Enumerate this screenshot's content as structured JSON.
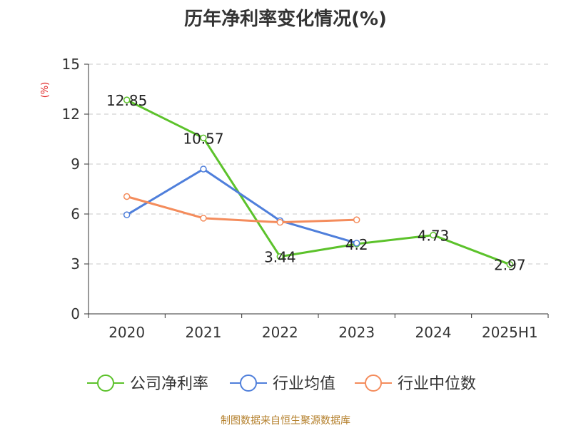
{
  "chart_data": {
    "type": "line",
    "title": "历年净利率变化情况(%)",
    "ylabel": "(%)",
    "xlabel": "",
    "categories": [
      "2020",
      "2021",
      "2022",
      "2023",
      "2024",
      "2025H1"
    ],
    "ylim": [
      0,
      15
    ],
    "yticks": [
      0,
      3,
      6,
      9,
      12,
      15
    ],
    "grid": true,
    "legend_position": "bottom",
    "series": [
      {
        "name": "公司净利率",
        "color": "#5cc22b",
        "values": [
          12.85,
          10.57,
          3.44,
          4.2,
          4.73,
          2.97
        ],
        "labels": [
          "12.85",
          "10.57",
          "3.44",
          "4.2",
          "4.73",
          "2.97"
        ]
      },
      {
        "name": "行业均值",
        "color": "#4f7fdb",
        "values": [
          5.95,
          8.7,
          5.6,
          4.25,
          null,
          null
        ]
      },
      {
        "name": "行业中位数",
        "color": "#f48c5c",
        "values": [
          7.05,
          5.75,
          5.5,
          5.65,
          null,
          null
        ]
      }
    ]
  },
  "colors": {
    "ylabel": "#e02020",
    "source": "#b5812e"
  },
  "source_text": "制图数据来自恒生聚源数据库"
}
